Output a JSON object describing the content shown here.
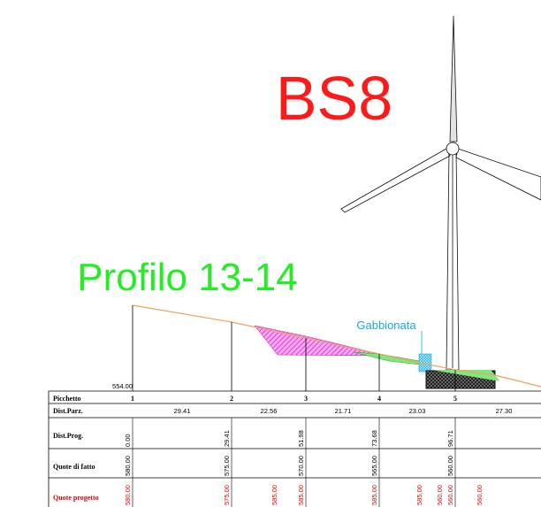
{
  "title": "BS8",
  "profile_title": "Profilo 13-14",
  "annotation": "Gabbionata",
  "datum": "554.00",
  "table": {
    "row_labels": [
      "Picchetto",
      "Dist.Parz.",
      "Dist.Prog.",
      "Quote di fatto",
      "Quote progetto"
    ],
    "picchetto": [
      "1",
      "2",
      "3",
      "4",
      "5"
    ],
    "dist_parz": [
      "29.41",
      "22.56",
      "21.71",
      "23.03",
      "27.30"
    ],
    "dist_prog": [
      "0.00",
      "29.41",
      "51.98",
      "73.68",
      "96.71"
    ],
    "quote_fatto": [
      "580.00",
      "575.00",
      "570.00",
      "565.00",
      "560.00"
    ],
    "quote_progetto": [
      "580.00",
      "575.00",
      "585.00",
      "585.00",
      "585.00",
      "585.00",
      "560.00",
      "560.00",
      "560.00"
    ]
  }
}
